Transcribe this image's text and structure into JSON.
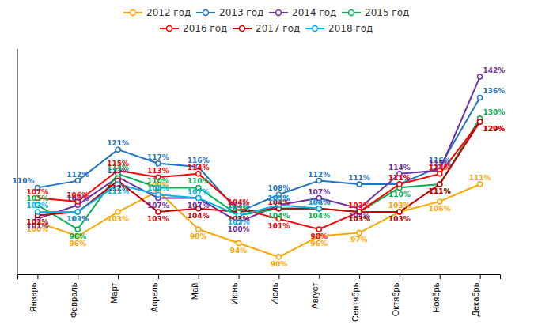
{
  "chart_data": {
    "type": "line",
    "categories": [
      "Январь",
      "Февраль",
      "Март",
      "Апрель",
      "Май",
      "Июнь",
      "Июль",
      "Август",
      "Сентябрь",
      "Октябрь",
      "Ноябрь",
      "Декабрь"
    ],
    "series": [
      {
        "name": "2012 год",
        "color": "#FFA500",
        "values": [
          100,
          96,
          103,
          109,
          98,
          94,
          90,
          96,
          97,
          103,
          106,
          111
        ],
        "value_labels": [
          "100%",
          "96%",
          "103%",
          "109%",
          "98%",
          "94%",
          "90%",
          "96%",
          "97%",
          "103%",
          "106%",
          "111%"
        ]
      },
      {
        "name": "2013 год",
        "color": "#1F72C4",
        "values": [
          110,
          112,
          121,
          117,
          116,
          103,
          108,
          112,
          111,
          111,
          116,
          136
        ],
        "value_labels": [
          "110%",
          "112%",
          "121%",
          "117%",
          "116%",
          "103%",
          "108%",
          "112%",
          "111%",
          "111%",
          "116%",
          "136%"
        ]
      },
      {
        "name": "2014 год",
        "color": "#7030A0",
        "values": [
          101,
          105,
          113,
          107,
          107,
          100,
          105,
          107,
          104,
          114,
          115,
          142
        ],
        "value_labels": [
          "101%",
          "105%",
          "113%",
          "107%",
          "107%",
          "100%",
          "105%",
          "107%",
          "104%",
          "114%",
          "115%",
          "142%"
        ]
      },
      {
        "name": "2015 год",
        "color": "#00B050",
        "values": [
          105,
          98,
          114,
          110,
          110,
          102,
          104,
          104,
          103,
          110,
          111,
          130
        ],
        "value_labels": [
          "105%",
          "98%",
          "114%",
          "110%",
          "110%",
          "102%",
          "104%",
          "104%",
          "103%",
          "110%",
          "111%",
          "130%"
        ]
      },
      {
        "name": "2016 год",
        "color": "#FF0000",
        "values": [
          107,
          106,
          115,
          113,
          114,
          104,
          101,
          98,
          103,
          111,
          114,
          129
        ],
        "value_labels": [
          "107%",
          "106%",
          "115%",
          "113%",
          "114%",
          "104%",
          "101%",
          "98%",
          "103%",
          "111%",
          "114%",
          "129%"
        ]
      },
      {
        "name": "2017 год",
        "color": "#C00000",
        "values": [
          102,
          103,
          112,
          103,
          104,
          103,
          104,
          104,
          103,
          103,
          111,
          129
        ],
        "value_labels": [
          "102%",
          "103%",
          "112%",
          "103%",
          "104%",
          "103%",
          "104%",
          "104%",
          "103%",
          "103%",
          "111%",
          "129%"
        ]
      },
      {
        "name": "2018 год",
        "color": "#00B0F0",
        "values": [
          103,
          103,
          111,
          108,
          107,
          102,
          105,
          104,
          null,
          null,
          null,
          null
        ],
        "value_labels": [
          "103%",
          "103%",
          "111%",
          "108%",
          "107%",
          "102%",
          "105%",
          "104%",
          null,
          null,
          null,
          null
        ]
      }
    ],
    "ylim": [
      85,
      150
    ],
    "grid": false,
    "legend": "top",
    "data_labels": true,
    "tick_labels": "x",
    "marker": "circle"
  }
}
